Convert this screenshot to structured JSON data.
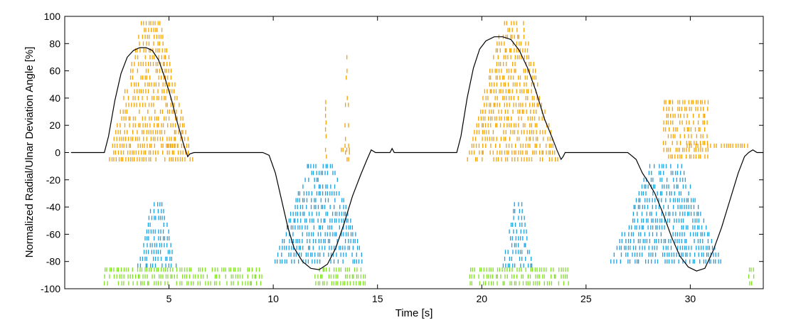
{
  "chart_data": {
    "type": "scatter",
    "title": "",
    "xlabel": "Time [s]",
    "ylabel": "Normalized Radial/Ulnar Deviation Angle [%]",
    "xlim": [
      0,
      33.5
    ],
    "ylim": [
      -100,
      100
    ],
    "xticks": [
      5,
      10,
      15,
      20,
      25,
      30
    ],
    "yticks": [
      -100,
      -80,
      -60,
      -40,
      -20,
      0,
      20,
      40,
      60,
      80,
      100
    ],
    "grid": false,
    "legend": "none",
    "colors": {
      "angle_line": "#000000",
      "radial_raster": "#f5a100",
      "ulnar_raster": "#1a9fe0",
      "rest_raster": "#7fe020"
    },
    "series": [
      {
        "type": "line",
        "points": [
          [
            0.3,
            0
          ],
          [
            1.5,
            0
          ],
          [
            1.9,
            0
          ],
          [
            2.1,
            12
          ],
          [
            2.4,
            38
          ],
          [
            2.7,
            58
          ],
          [
            3.0,
            70
          ],
          [
            3.3,
            75
          ],
          [
            3.6,
            77
          ],
          [
            3.9,
            77
          ],
          [
            4.2,
            75
          ],
          [
            4.5,
            68
          ],
          [
            4.8,
            55
          ],
          [
            5.1,
            40
          ],
          [
            5.4,
            22
          ],
          [
            5.7,
            6
          ],
          [
            5.9,
            -3
          ],
          [
            6.0,
            -1
          ],
          [
            6.2,
            0
          ],
          [
            9.5,
            0
          ],
          [
            9.8,
            -2
          ],
          [
            10.1,
            -15
          ],
          [
            10.4,
            -35
          ],
          [
            10.7,
            -55
          ],
          [
            11.0,
            -70
          ],
          [
            11.4,
            -80
          ],
          [
            11.8,
            -85
          ],
          [
            12.2,
            -86
          ],
          [
            12.6,
            -82
          ],
          [
            13.0,
            -70
          ],
          [
            13.4,
            -52
          ],
          [
            13.8,
            -32
          ],
          [
            14.2,
            -16
          ],
          [
            14.5,
            -5
          ],
          [
            14.7,
            2
          ],
          [
            14.9,
            0
          ],
          [
            15.2,
            0
          ],
          [
            15.6,
            0
          ],
          [
            15.7,
            3
          ],
          [
            15.8,
            0
          ],
          [
            18.8,
            0
          ],
          [
            19.0,
            12
          ],
          [
            19.3,
            40
          ],
          [
            19.6,
            62
          ],
          [
            19.9,
            76
          ],
          [
            20.2,
            82
          ],
          [
            20.6,
            85
          ],
          [
            21.0,
            85
          ],
          [
            21.4,
            83
          ],
          [
            21.8,
            75
          ],
          [
            22.2,
            62
          ],
          [
            22.6,
            45
          ],
          [
            23.0,
            25
          ],
          [
            23.4,
            10
          ],
          [
            23.6,
            2
          ],
          [
            23.8,
            -5
          ],
          [
            23.9,
            -3
          ],
          [
            24.0,
            0
          ],
          [
            27.0,
            0
          ],
          [
            27.4,
            -5
          ],
          [
            27.7,
            -15
          ],
          [
            28.0,
            -22
          ],
          [
            28.3,
            -30
          ],
          [
            28.7,
            -45
          ],
          [
            29.1,
            -62
          ],
          [
            29.5,
            -76
          ],
          [
            29.9,
            -84
          ],
          [
            30.3,
            -87
          ],
          [
            30.7,
            -85
          ],
          [
            31.1,
            -72
          ],
          [
            31.5,
            -55
          ],
          [
            31.9,
            -35
          ],
          [
            32.3,
            -15
          ],
          [
            32.6,
            -3
          ],
          [
            32.8,
            0
          ],
          [
            33.0,
            2
          ],
          [
            33.2,
            0
          ],
          [
            33.5,
            0
          ]
        ]
      },
      {
        "type": "raster",
        "name": "",
        "color_key": "radial_raster",
        "clusters": [
          {
            "x": [
              2.1,
              6.2
            ],
            "y_top": 95
          },
          {
            "x": [
              4.8,
              5.8
            ],
            "y_top": 5
          },
          {
            "x": [
              13.1,
              13.7
            ],
            "y_top": 2
          },
          {
            "x": [
              13.4,
              13.7
            ],
            "y_top": 70
          },
          {
            "x": [
              12.5,
              12.6
            ],
            "y_top": 37
          },
          {
            "x": [
              19.3,
              23.7
            ],
            "y_top": 95
          },
          {
            "x": [
              28.7,
              30.9
            ],
            "y_top": 37
          },
          {
            "x": [
              29.7,
              32.8
            ],
            "y_top": 5
          }
        ]
      },
      {
        "type": "raster",
        "name": "",
        "color_key": "ulnar_raster",
        "clusters": [
          {
            "x": [
              3.5,
              5.4
            ],
            "y_top": -38
          },
          {
            "x": [
              10.0,
              14.5
            ],
            "y_top": -10
          },
          {
            "x": [
              21.0,
              22.5
            ],
            "y_top": -38
          },
          {
            "x": [
              26.1,
              31.6
            ],
            "y_top": -10
          }
        ]
      },
      {
        "type": "raster",
        "name": "",
        "color_key": "rest_raster",
        "clusters": [
          {
            "x": [
              1.9,
              9.5
            ],
            "y_top": -86
          },
          {
            "x": [
              12.0,
              14.5
            ],
            "y_top": -86
          },
          {
            "x": [
              19.4,
              24.2
            ],
            "y_top": -86
          },
          {
            "x": [
              32.8,
              33.1
            ],
            "y_top": -86
          }
        ]
      }
    ]
  }
}
